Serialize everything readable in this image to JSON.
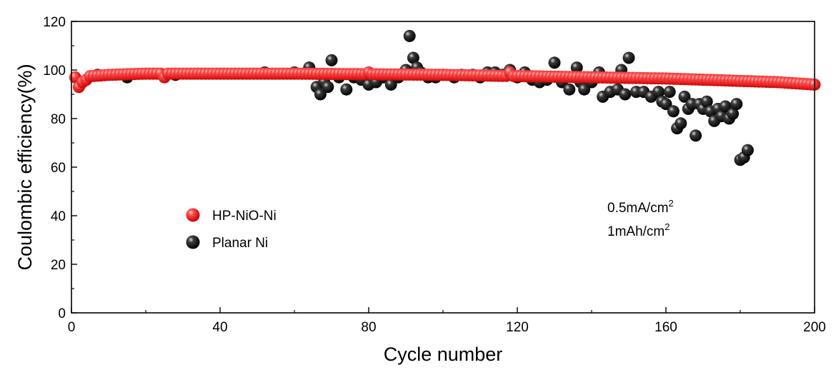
{
  "chart_data": {
    "type": "scatter",
    "title": "",
    "xlabel": "Cycle number",
    "ylabel": "Coulombic efficiency(%)",
    "xlim": [
      0,
      200
    ],
    "ylim": [
      0,
      120
    ],
    "xticks": [
      0,
      40,
      80,
      120,
      160,
      200
    ],
    "yticks": [
      0,
      20,
      40,
      60,
      80,
      100,
      120
    ],
    "grid": false,
    "legend_position": "middle-left",
    "annotations": [
      {
        "text": "0.5mA/cm",
        "sup": "2"
      },
      {
        "text": "1mAh/cm",
        "sup": "2"
      }
    ],
    "series": [
      {
        "name": "HP-NiO-Ni",
        "color": "#ff1a1a",
        "baseline": [
          [
            1,
            97
          ],
          [
            10,
            98
          ],
          [
            20,
            98.5
          ],
          [
            60,
            98.5
          ],
          [
            100,
            98
          ],
          [
            120,
            97.5
          ],
          [
            140,
            97
          ],
          [
            160,
            96.5
          ],
          [
            180,
            95.5
          ],
          [
            190,
            95
          ],
          [
            200,
            94
          ]
        ],
        "outliers": [
          [
            2,
            93
          ],
          [
            3,
            95
          ],
          [
            4,
            96
          ],
          [
            25,
            97
          ],
          [
            80,
            99
          ],
          [
            118,
            99
          ]
        ]
      },
      {
        "name": "Planar Ni",
        "color": "#111111",
        "points": [
          [
            7,
            98
          ],
          [
            15,
            97
          ],
          [
            28,
            98
          ],
          [
            52,
            99
          ],
          [
            60,
            99
          ],
          [
            64,
            101
          ],
          [
            66,
            93
          ],
          [
            67,
            90
          ],
          [
            68,
            95
          ],
          [
            69,
            93
          ],
          [
            70,
            104
          ],
          [
            72,
            97
          ],
          [
            74,
            92
          ],
          [
            76,
            97
          ],
          [
            78,
            96
          ],
          [
            80,
            94
          ],
          [
            82,
            95
          ],
          [
            84,
            97
          ],
          [
            86,
            94
          ],
          [
            88,
            97
          ],
          [
            90,
            100
          ],
          [
            91,
            114
          ],
          [
            92,
            105
          ],
          [
            93,
            101
          ],
          [
            94,
            99
          ],
          [
            96,
            97
          ],
          [
            98,
            97
          ],
          [
            100,
            98
          ],
          [
            103,
            97
          ],
          [
            105,
            98
          ],
          [
            108,
            98
          ],
          [
            110,
            97
          ],
          [
            112,
            99
          ],
          [
            114,
            99
          ],
          [
            116,
            98
          ],
          [
            118,
            100
          ],
          [
            120,
            97
          ],
          [
            122,
            99
          ],
          [
            124,
            96
          ],
          [
            126,
            95
          ],
          [
            128,
            96
          ],
          [
            130,
            103
          ],
          [
            132,
            95
          ],
          [
            134,
            92
          ],
          [
            136,
            101
          ],
          [
            137,
            95
          ],
          [
            138,
            92
          ],
          [
            140,
            95
          ],
          [
            142,
            99
          ],
          [
            143,
            89
          ],
          [
            145,
            91
          ],
          [
            147,
            92
          ],
          [
            148,
            100
          ],
          [
            149,
            90
          ],
          [
            150,
            105
          ],
          [
            152,
            91
          ],
          [
            154,
            91
          ],
          [
            156,
            89
          ],
          [
            158,
            91
          ],
          [
            159,
            87
          ],
          [
            160,
            86
          ],
          [
            161,
            91
          ],
          [
            162,
            83
          ],
          [
            163,
            76
          ],
          [
            164,
            78
          ],
          [
            165,
            89
          ],
          [
            166,
            84
          ],
          [
            167,
            86
          ],
          [
            168,
            73
          ],
          [
            169,
            86
          ],
          [
            170,
            84
          ],
          [
            171,
            87
          ],
          [
            172,
            83
          ],
          [
            173,
            79
          ],
          [
            174,
            84
          ],
          [
            175,
            81
          ],
          [
            176,
            85
          ],
          [
            177,
            80
          ],
          [
            178,
            82
          ],
          [
            179,
            86
          ],
          [
            180,
            63
          ],
          [
            181,
            64
          ],
          [
            182,
            67
          ]
        ]
      }
    ]
  }
}
